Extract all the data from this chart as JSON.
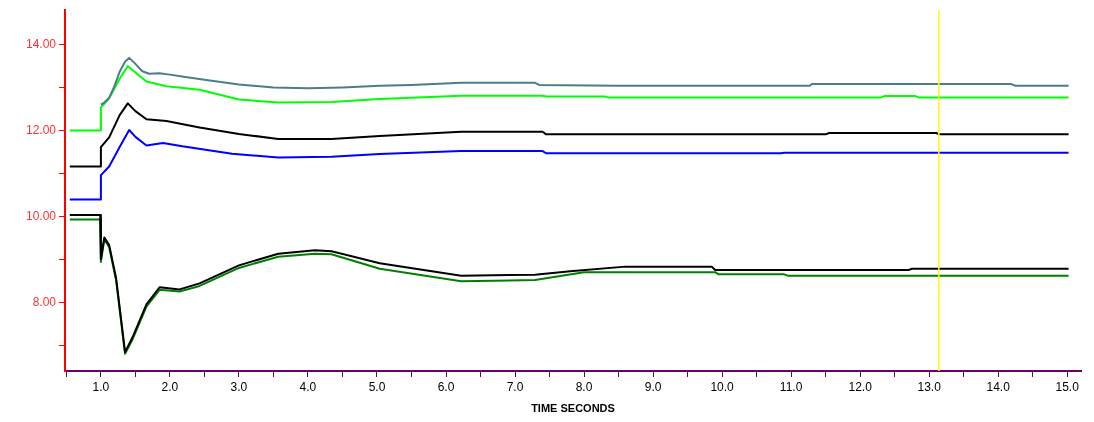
{
  "chart_data": {
    "type": "line",
    "xlabel": "TIME SECONDS",
    "xlim": [
      0.48,
      15.2
    ],
    "ylim": [
      6.4,
      14.8
    ],
    "xticks": [
      {
        "value": 0.5,
        "label": null
      },
      {
        "value": 1,
        "label": "1.0"
      },
      {
        "value": 1.5,
        "label": null
      },
      {
        "value": 2,
        "label": "2.0"
      },
      {
        "value": 2.5,
        "label": null
      },
      {
        "value": 3,
        "label": "3.0"
      },
      {
        "value": 3.5,
        "label": null
      },
      {
        "value": 4,
        "label": "4.0"
      },
      {
        "value": 4.5,
        "label": null
      },
      {
        "value": 5,
        "label": "5.0"
      },
      {
        "value": 5.5,
        "label": null
      },
      {
        "value": 6,
        "label": "6.0"
      },
      {
        "value": 6.5,
        "label": null
      },
      {
        "value": 7,
        "label": "7.0"
      },
      {
        "value": 7.5,
        "label": null
      },
      {
        "value": 8,
        "label": "8.0"
      },
      {
        "value": 8.5,
        "label": null
      },
      {
        "value": 9,
        "label": "9.0"
      },
      {
        "value": 9.5,
        "label": null
      },
      {
        "value": 10,
        "label": "10.0"
      },
      {
        "value": 10.5,
        "label": null
      },
      {
        "value": 11,
        "label": "11.0"
      },
      {
        "value": 11.5,
        "label": null
      },
      {
        "value": 12,
        "label": "12.0"
      },
      {
        "value": 12.5,
        "label": null
      },
      {
        "value": 13,
        "label": "13.0"
      },
      {
        "value": 13.5,
        "label": null
      },
      {
        "value": 14,
        "label": "14.0"
      },
      {
        "value": 14.5,
        "label": null
      },
      {
        "value": 15,
        "label": "15.0"
      }
    ],
    "yticks": [
      {
        "value": 7,
        "label": null
      },
      {
        "value": 8,
        "label": "8.00"
      },
      {
        "value": 9,
        "label": null
      },
      {
        "value": 10,
        "label": "10.00"
      },
      {
        "value": 11,
        "label": null
      },
      {
        "value": 12,
        "label": "12.00"
      },
      {
        "value": 13,
        "label": null
      },
      {
        "value": 14,
        "label": "14.00"
      }
    ],
    "grid": false,
    "legend": false,
    "marker": "none",
    "line_style": "solid",
    "ref_lines": [
      {
        "axis": "x",
        "value": 13.14,
        "color": "#ffff00"
      }
    ],
    "series": [
      {
        "color": "#4a7f8a",
        "x": [
          1.0,
          1.05,
          1.12,
          1.2,
          1.27,
          1.35,
          1.41,
          1.5,
          1.6,
          1.7,
          1.85,
          2.0,
          2.2,
          2.5,
          3.0,
          3.5,
          4.0,
          4.5,
          5.04,
          5.5,
          6.22,
          7.29,
          7.35,
          8.49,
          11.27,
          11.3,
          14.19,
          14.25,
          15.02
        ],
        "values": [
          12.6,
          12.65,
          12.76,
          13.05,
          13.36,
          13.6,
          13.69,
          13.55,
          13.38,
          13.32,
          13.33,
          13.3,
          13.25,
          13.18,
          13.07,
          13.0,
          12.98,
          13.0,
          13.04,
          13.06,
          13.11,
          13.11,
          13.06,
          13.04,
          13.04,
          13.08,
          13.08,
          13.04,
          13.04
        ]
      },
      {
        "color": "#00ff00",
        "x": [
          0.55,
          0.99,
          1.0,
          1.12,
          1.27,
          1.39,
          1.5,
          1.66,
          1.95,
          2.43,
          3.0,
          3.57,
          4.34,
          5.04,
          6.22,
          7.4,
          7.45,
          8.3,
          8.35,
          12.3,
          12.35,
          12.8,
          12.85,
          15.02
        ],
        "values": [
          12.0,
          12.0,
          12.53,
          12.75,
          13.2,
          13.5,
          13.35,
          13.14,
          13.03,
          12.95,
          12.72,
          12.65,
          12.66,
          12.73,
          12.81,
          12.81,
          12.79,
          12.79,
          12.77,
          12.77,
          12.8,
          12.8,
          12.77,
          12.77
        ]
      },
      {
        "color": "#000000",
        "x": [
          0.55,
          0.99,
          1.0,
          1.12,
          1.27,
          1.39,
          1.5,
          1.66,
          1.95,
          2.43,
          3.0,
          3.57,
          4.34,
          5.04,
          6.22,
          7.4,
          7.45,
          11.5,
          11.55,
          13.1,
          13.15,
          15.02
        ],
        "values": [
          11.16,
          11.16,
          11.61,
          11.84,
          12.35,
          12.63,
          12.45,
          12.26,
          12.22,
          12.07,
          11.92,
          11.8,
          11.8,
          11.87,
          11.97,
          11.97,
          11.91,
          11.91,
          11.94,
          11.94,
          11.91,
          11.91
        ]
      },
      {
        "color": "#0000ff",
        "x": [
          0.55,
          0.99,
          1.0,
          1.12,
          1.27,
          1.41,
          1.5,
          1.66,
          1.9,
          2.18,
          2.9,
          3.57,
          4.34,
          5.04,
          6.22,
          7.4,
          7.45,
          10.85,
          10.9,
          15.02
        ],
        "values": [
          10.39,
          10.39,
          10.96,
          11.16,
          11.61,
          12.01,
          11.85,
          11.65,
          11.71,
          11.63,
          11.46,
          11.37,
          11.39,
          11.45,
          11.52,
          11.52,
          11.47,
          11.47,
          11.48,
          11.48
        ]
      },
      {
        "color": "#000000",
        "x": [
          0.55,
          0.99,
          1.0,
          1.05,
          1.12,
          1.22,
          1.35,
          1.46,
          1.66,
          1.85,
          2.14,
          2.43,
          3.0,
          3.57,
          4.1,
          4.34,
          5.04,
          6.22,
          7.29,
          7.8,
          8.6,
          9.85,
          9.9,
          12.7,
          12.75,
          15.02
        ],
        "values": [
          10.03,
          10.03,
          9.01,
          9.51,
          9.33,
          8.56,
          6.84,
          7.19,
          7.95,
          8.35,
          8.3,
          8.44,
          8.86,
          9.13,
          9.21,
          9.19,
          8.91,
          8.62,
          8.64,
          8.72,
          8.83,
          8.83,
          8.75,
          8.75,
          8.78,
          8.78
        ]
      },
      {
        "color": "#008000",
        "x": [
          0.55,
          0.99,
          1.0,
          1.05,
          1.12,
          1.22,
          1.35,
          1.46,
          1.66,
          1.85,
          2.14,
          2.43,
          3.0,
          3.57,
          4.1,
          4.34,
          5.04,
          6.22,
          7.29,
          8.0,
          9.9,
          9.95,
          10.9,
          10.95,
          15.02
        ],
        "values": [
          9.93,
          9.93,
          8.94,
          9.47,
          9.28,
          8.52,
          6.8,
          7.14,
          7.9,
          8.29,
          8.25,
          8.38,
          8.8,
          9.06,
          9.13,
          9.12,
          8.78,
          8.49,
          8.52,
          8.7,
          8.7,
          8.65,
          8.65,
          8.62,
          8.62
        ]
      }
    ]
  }
}
